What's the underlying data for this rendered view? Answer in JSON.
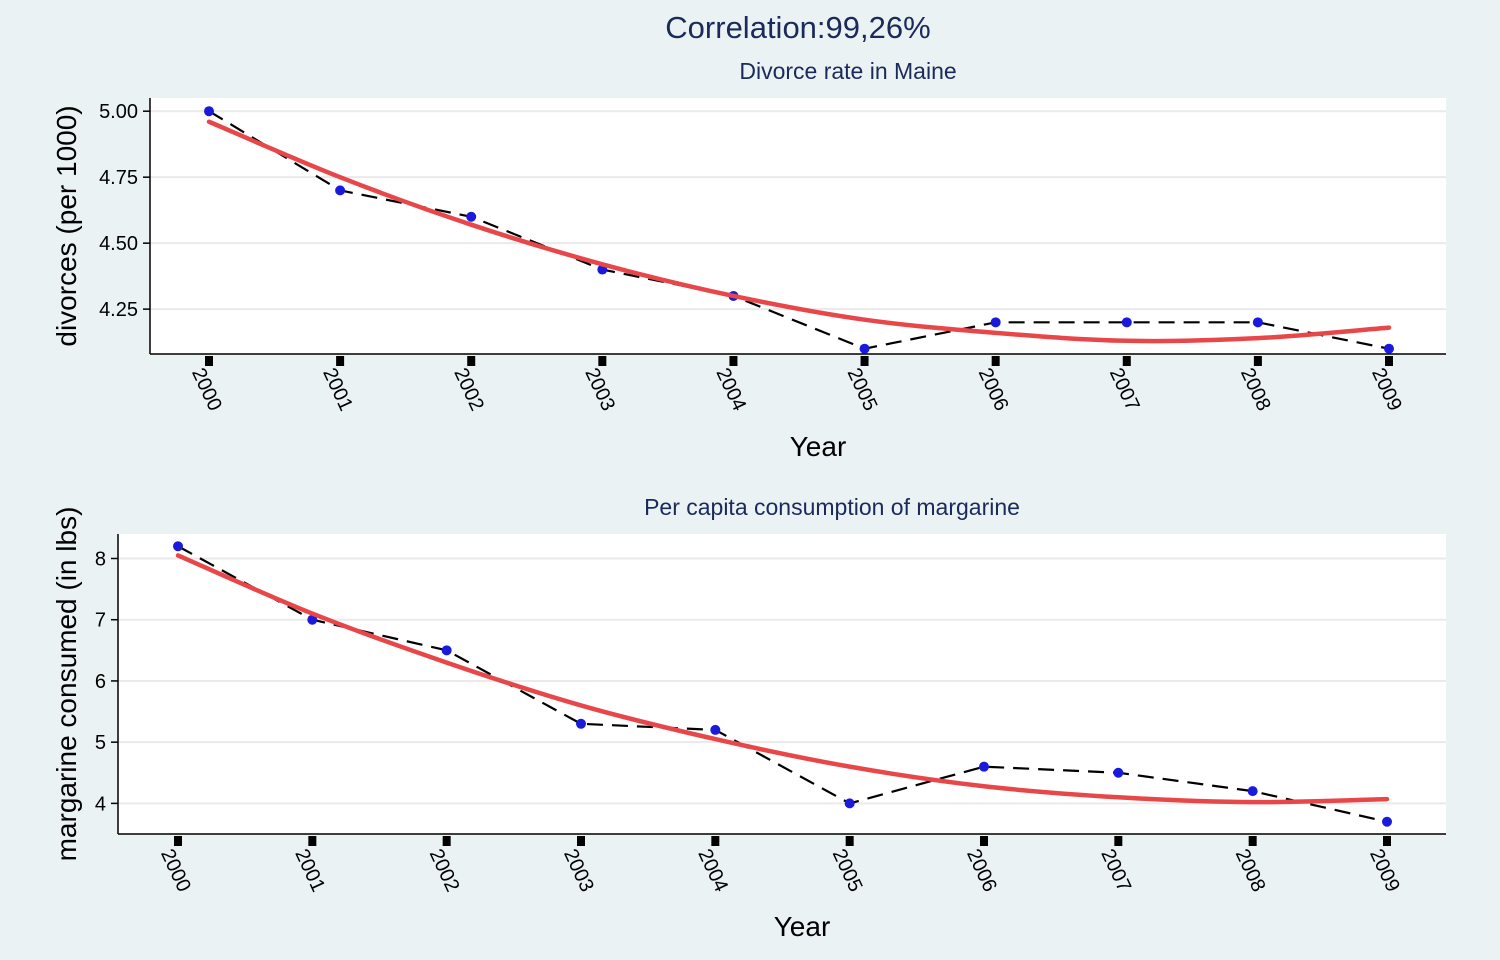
{
  "title": "Correlation:99,26%",
  "chart_data": [
    {
      "type": "line",
      "title": "Divorce rate in Maine",
      "xlabel": "Year",
      "ylabel": "divorces (per 1000)",
      "categories": [
        "2000",
        "2001",
        "2002",
        "2003",
        "2004",
        "2005",
        "2006",
        "2007",
        "2008",
        "2009"
      ],
      "yticks": [
        "5.00",
        "4.75",
        "4.50",
        "4.25"
      ],
      "ylim": [
        4.08,
        5.05
      ],
      "grid": true,
      "series": [
        {
          "style": "dashed-markers",
          "color": "#000000",
          "marker_color": "#1a1adb",
          "values": [
            5.0,
            4.7,
            4.6,
            4.4,
            4.3,
            4.1,
            4.2,
            4.2,
            4.2,
            4.1
          ]
        },
        {
          "style": "fit",
          "color": "#e8474a",
          "values": [
            4.96,
            4.75,
            4.57,
            4.42,
            4.3,
            4.21,
            4.16,
            4.13,
            4.14,
            4.18
          ]
        }
      ]
    },
    {
      "type": "line",
      "title": "Per capita consumption of margarine",
      "xlabel": "Year",
      "ylabel": "margarine consumed (in lbs)",
      "categories": [
        "2000",
        "2001",
        "2002",
        "2003",
        "2004",
        "2005",
        "2006",
        "2007",
        "2008",
        "2009"
      ],
      "yticks": [
        "8",
        "7",
        "6",
        "5",
        "4"
      ],
      "ylim": [
        3.5,
        8.4
      ],
      "grid": true,
      "series": [
        {
          "style": "dashed-markers",
          "color": "#000000",
          "marker_color": "#1a1adb",
          "values": [
            8.2,
            7.0,
            6.5,
            5.3,
            5.2,
            4.0,
            4.6,
            4.5,
            4.2,
            3.7
          ]
        },
        {
          "style": "fit",
          "color": "#e8474a",
          "values": [
            8.05,
            7.1,
            6.3,
            5.6,
            5.05,
            4.6,
            4.28,
            4.1,
            4.02,
            4.07
          ]
        }
      ]
    }
  ]
}
